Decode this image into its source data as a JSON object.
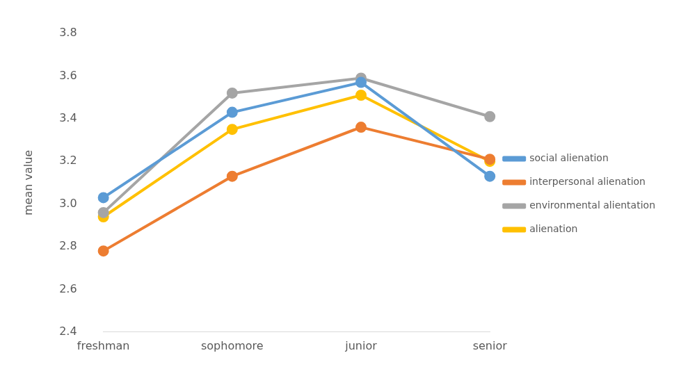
{
  "chart_data": {
    "type": "line",
    "ylabel": "mean value",
    "categories": [
      "freshman",
      "sophomore",
      "junior",
      "senior"
    ],
    "series": [
      {
        "name": "social alienation",
        "color": "#5b9bd5",
        "values": [
          3.03,
          3.43,
          3.57,
          3.13
        ]
      },
      {
        "name": "interpersonal alienation",
        "color": "#ed7d31",
        "values": [
          2.78,
          3.13,
          3.36,
          3.21
        ]
      },
      {
        "name": "environmental alientation",
        "color": "#a5a5a5",
        "values": [
          2.96,
          3.52,
          3.59,
          3.41
        ]
      },
      {
        "name": "alienation",
        "color": "#ffc000",
        "values": [
          2.94,
          3.35,
          3.51,
          3.2
        ]
      }
    ],
    "ylim": [
      2.4,
      3.8
    ],
    "yticks": [
      2.4,
      2.6,
      2.8,
      {
        "value": 3,
        "label": "3.0"
      },
      3.2,
      3.4,
      3.6,
      3.8
    ],
    "grid": false,
    "legend": "right",
    "marker": "circle",
    "line_style": "solid"
  }
}
